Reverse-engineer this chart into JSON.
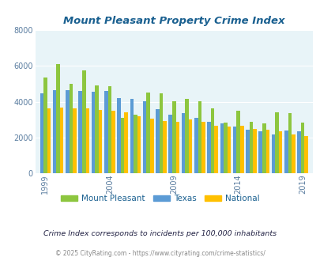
{
  "title": "Mount Pleasant Property Crime Index",
  "title_color": "#1a6090",
  "subtitle": "Crime Index corresponds to incidents per 100,000 inhabitants",
  "footer": "© 2025 CityRating.com - https://www.cityrating.com/crime-statistics/",
  "years": [
    1999,
    2000,
    2001,
    2002,
    2003,
    2004,
    2005,
    2006,
    2007,
    2008,
    2009,
    2010,
    2011,
    2012,
    2013,
    2014,
    2015,
    2016,
    2017,
    2018,
    2019
  ],
  "mount_pleasant": [
    5350,
    6100,
    5000,
    5750,
    4900,
    4850,
    3100,
    3300,
    4500,
    4450,
    4050,
    4150,
    4050,
    3650,
    2850,
    3500,
    2900,
    2800,
    3400,
    3350,
    2850
  ],
  "texas": [
    4450,
    4650,
    4650,
    4600,
    4550,
    4600,
    4200,
    4150,
    4050,
    3600,
    3300,
    3350,
    3100,
    2900,
    2800,
    2600,
    2450,
    2350,
    2200,
    2400,
    2350
  ],
  "national": [
    3650,
    3700,
    3650,
    3650,
    3550,
    3500,
    3400,
    3200,
    3050,
    2950,
    2900,
    3000,
    2900,
    2650,
    2600,
    2650,
    2500,
    2450,
    2350,
    2200,
    2100
  ],
  "mp_color": "#8dc63f",
  "tx_color": "#5b9bd5",
  "nat_color": "#ffc000",
  "bg_color": "#ddeef5",
  "plot_bg": "#e8f4f8",
  "ylim": [
    0,
    8000
  ],
  "yticks": [
    0,
    2000,
    4000,
    6000,
    8000
  ],
  "tick_label_color": "#5a7da0",
  "grid_color": "#ffffff",
  "bar_order": [
    "texas",
    "mount_pleasant",
    "national"
  ],
  "legend_labels": [
    "Mount Pleasant",
    "Texas",
    "National"
  ],
  "label_years": [
    1999,
    2004,
    2009,
    2014,
    2019
  ]
}
